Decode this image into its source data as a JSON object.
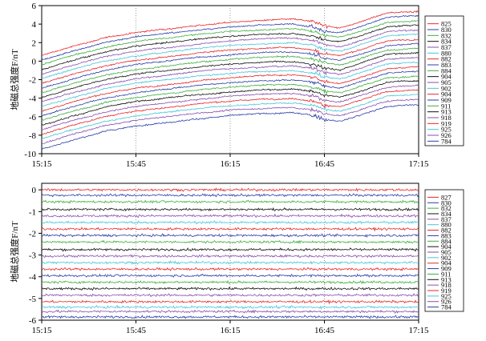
{
  "chart_data": [
    {
      "type": "line",
      "ylabel": "地磁总强度F/nT",
      "xlabel": "",
      "x_ticks": [
        "15:15",
        "15:45",
        "16:15",
        "16:45",
        "17:15"
      ],
      "x_range": [
        "15:15",
        "17:15"
      ],
      "ylim": [
        -10,
        6
      ],
      "y_ticks": [
        -10,
        -8,
        -6,
        -4,
        -2,
        0,
        2,
        4,
        6
      ],
      "grid": "vertical dotted at x ticks",
      "legend_placement": "right",
      "trend_shape": {
        "times": [
          "15:15",
          "15:25",
          "15:35",
          "15:45",
          "15:55",
          "16:05",
          "16:15",
          "16:25",
          "16:35",
          "16:42",
          "16:45",
          "16:50",
          "16:55",
          "17:05",
          "17:15"
        ],
        "offset": [
          0.0,
          1.0,
          1.9,
          2.5,
          2.9,
          3.3,
          3.6,
          3.8,
          3.9,
          3.6,
          3.2,
          3.0,
          3.5,
          4.6,
          4.8
        ]
      },
      "series": [
        {
          "name": "825",
          "color": "#e8272a",
          "start": 0.6
        },
        {
          "name": "830",
          "color": "#2a3fa8",
          "start": 0.1
        },
        {
          "name": "832",
          "color": "#3eae3e",
          "start": -0.4
        },
        {
          "name": "834",
          "color": "#111111",
          "start": -0.9
        },
        {
          "name": "837",
          "color": "#8a4fb0",
          "start": -1.4
        },
        {
          "name": "880",
          "color": "#45c6d8",
          "start": -1.9
        },
        {
          "name": "882",
          "color": "#e8272a",
          "start": -2.4
        },
        {
          "name": "883",
          "color": "#2a3fa8",
          "start": -2.9
        },
        {
          "name": "884",
          "color": "#3eae3e",
          "start": -3.4
        },
        {
          "name": "904",
          "color": "#111111",
          "start": -3.9
        },
        {
          "name": "905",
          "color": "#8a4fb0",
          "start": -4.4
        },
        {
          "name": "902",
          "color": "#45c6d8",
          "start": -4.9
        },
        {
          "name": "904",
          "color": "#e8272a",
          "start": -5.4
        },
        {
          "name": "909",
          "color": "#2a3fa8",
          "start": -5.9
        },
        {
          "name": "911",
          "color": "#3eae3e",
          "start": -6.4
        },
        {
          "name": "913",
          "color": "#111111",
          "start": -6.9
        },
        {
          "name": "918",
          "color": "#8a4fb0",
          "start": -7.4
        },
        {
          "name": "919",
          "color": "#e8272a",
          "start": -7.9
        },
        {
          "name": "925",
          "color": "#45c6d8",
          "start": -8.4
        },
        {
          "name": "926",
          "color": "#8a4fb0",
          "start": -8.9
        },
        {
          "name": "784",
          "color": "#2a3fa8",
          "start": -9.5
        }
      ]
    },
    {
      "type": "line",
      "ylabel": "地磁总强度F/nT",
      "xlabel": "",
      "x_ticks": [
        "15:15",
        "15:45",
        "16:15",
        "16:45",
        "17:15"
      ],
      "x_range": [
        "15:15",
        "17:15"
      ],
      "ylim": [
        -6,
        0.3
      ],
      "y_ticks": [
        -6,
        -5,
        -4,
        -3,
        -2,
        -1,
        0
      ],
      "grid": "vertical dotted at x ticks",
      "legend_placement": "right",
      "series": [
        {
          "name": "827",
          "color": "#e8272a",
          "level": 0.0
        },
        {
          "name": "830",
          "color": "#2a3fa8",
          "level": -0.25
        },
        {
          "name": "832",
          "color": "#3eae3e",
          "level": -0.55
        },
        {
          "name": "834",
          "color": "#111111",
          "level": -0.9
        },
        {
          "name": "837",
          "color": "#8a4fb0",
          "level": -1.2
        },
        {
          "name": "880",
          "color": "#45c6d8",
          "level": -1.5
        },
        {
          "name": "882",
          "color": "#e8272a",
          "level": -1.8
        },
        {
          "name": "883",
          "color": "#2a3fa8",
          "level": -2.1
        },
        {
          "name": "884",
          "color": "#3eae3e",
          "level": -2.4
        },
        {
          "name": "904",
          "color": "#111111",
          "level": -2.75
        },
        {
          "name": "905",
          "color": "#8a4fb0",
          "level": -3.05
        },
        {
          "name": "902",
          "color": "#45c6d8",
          "level": -3.35
        },
        {
          "name": "904",
          "color": "#e8272a",
          "level": -3.65
        },
        {
          "name": "909",
          "color": "#2a3fa8",
          "level": -3.95
        },
        {
          "name": "911",
          "color": "#3eae3e",
          "level": -4.25
        },
        {
          "name": "913",
          "color": "#111111",
          "level": -4.55
        },
        {
          "name": "918",
          "color": "#8a4fb0",
          "level": -4.85
        },
        {
          "name": "919",
          "color": "#e8272a",
          "level": -5.15
        },
        {
          "name": "925",
          "color": "#45c6d8",
          "level": -5.4
        },
        {
          "name": "926",
          "color": "#8a4fb0",
          "level": -5.6
        },
        {
          "name": "784",
          "color": "#2a3fa8",
          "level": -5.85
        }
      ]
    }
  ]
}
